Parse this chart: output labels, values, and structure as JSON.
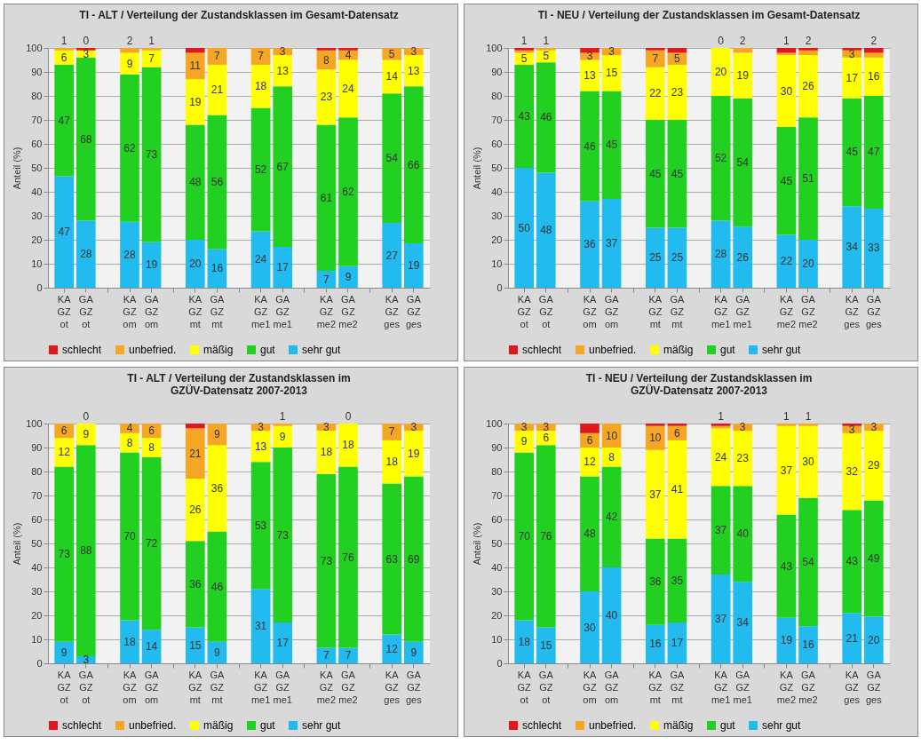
{
  "chart_data": [
    {
      "type": "bar",
      "stacked": true,
      "title": "TI - ALT / Verteilung der Zustandsklassen im Gesamt-Datensatz",
      "ylabel": "Anteil (%)",
      "categories": [
        "KA\nGZ\not",
        "GA\nGZ\not",
        null,
        "KA\nGZ\nom",
        "GA\nGZ\nom",
        null,
        "KA\nGZ\nmt",
        "GA\nGZ\nmt",
        null,
        "KA\nGZ\nme1",
        "GA\nGZ\nme1",
        null,
        "KA\nGZ\nme2",
        "GA\nGZ\nme2",
        null,
        "KA\nGZ\nges",
        "GA\nGZ\nges"
      ],
      "ylim": [
        0,
        100
      ],
      "yticks": [
        0,
        10,
        20,
        30,
        40,
        50,
        60,
        70,
        80,
        90,
        100
      ],
      "grid": "y",
      "legend": "bottom",
      "data_labels": true,
      "series": [
        {
          "name": "sehr gut",
          "color": "#21bbef",
          "values": [
            46.5,
            28,
            null,
            27.5,
            19,
            null,
            20,
            16,
            null,
            23.5,
            17,
            null,
            7,
            9,
            null,
            27,
            18.5
          ],
          "value_labels": [
            "47",
            "28",
            null,
            "28",
            "19",
            null,
            "20",
            "16",
            null,
            "24",
            "17",
            null,
            "7",
            "9",
            null,
            "27",
            "19"
          ]
        },
        {
          "name": "gut",
          "color": "#22d022",
          "values": [
            46.5,
            68,
            null,
            61.5,
            73,
            null,
            48,
            56,
            null,
            51.5,
            67,
            null,
            61,
            62,
            null,
            54,
            65.5
          ],
          "value_labels": [
            "47",
            "68",
            null,
            "62",
            "73",
            null,
            "48",
            "56",
            null,
            "52",
            "67",
            null,
            "61",
            "62",
            null,
            "54",
            "66"
          ]
        },
        {
          "name": "mäßig",
          "color": "#ffff00",
          "values": [
            6,
            3,
            null,
            9,
            7,
            null,
            19,
            21,
            null,
            18,
            13,
            null,
            23,
            24,
            null,
            14,
            13
          ]
        },
        {
          "name": "unbefried.",
          "color": "#f5a623",
          "values": [
            1,
            0,
            null,
            2,
            1,
            null,
            11,
            7,
            null,
            7,
            3,
            null,
            8,
            4,
            null,
            5,
            3
          ]
        },
        {
          "name": "schlecht",
          "color": "#e3161b",
          "values": [
            0,
            1,
            null,
            0,
            0,
            null,
            2,
            0,
            null,
            0,
            0,
            null,
            1,
            1,
            null,
            0,
            0
          ],
          "value_labels": [
            null,
            null,
            null,
            null,
            null,
            null,
            null,
            null,
            null,
            null,
            null,
            null,
            null,
            null,
            null,
            null,
            null
          ]
        }
      ]
    },
    {
      "type": "bar",
      "stacked": true,
      "title": "TI - NEU / Verteilung der Zustandsklassen im Gesamt-Datensatz",
      "ylabel": "Anteil (%)",
      "categories": [
        "KA\nGZ\not",
        "GA\nGZ\not",
        null,
        "KA\nGZ\nom",
        "GA\nGZ\nom",
        null,
        "KA\nGZ\nmt",
        "GA\nGZ\nmt",
        null,
        "KA\nGZ\nme1",
        "GA\nGZ\nme1",
        null,
        "KA\nGZ\nme2",
        "GA\nGZ\nme2",
        null,
        "KA\nGZ\nges",
        "GA\nGZ\nges"
      ],
      "ylim": [
        0,
        100
      ],
      "yticks": [
        0,
        10,
        20,
        30,
        40,
        50,
        60,
        70,
        80,
        90,
        100
      ],
      "grid": "y",
      "legend": "bottom",
      "data_labels": true,
      "series": [
        {
          "name": "sehr gut",
          "color": "#21bbef",
          "values": [
            50,
            48,
            null,
            36,
            37,
            null,
            25,
            25,
            null,
            28,
            25.5,
            null,
            22,
            20,
            null,
            34,
            33
          ],
          "value_labels": [
            "50",
            "48",
            null,
            "36",
            "37",
            null,
            "25",
            "25",
            null,
            "28",
            "26",
            null,
            "22",
            "20",
            null,
            "34",
            "33"
          ]
        },
        {
          "name": "gut",
          "color": "#22d022",
          "values": [
            43,
            46,
            null,
            46,
            45,
            null,
            45,
            45,
            null,
            52,
            53.5,
            null,
            45,
            51,
            null,
            45,
            47
          ],
          "value_labels": [
            "43",
            "46",
            null,
            "46",
            "45",
            null,
            "45",
            "45",
            null,
            "52",
            "54",
            null,
            "45",
            "51",
            null,
            "45",
            "47"
          ]
        },
        {
          "name": "mäßig",
          "color": "#ffff00",
          "values": [
            5,
            5,
            null,
            13,
            15,
            null,
            22,
            23,
            null,
            20,
            19,
            null,
            30,
            26,
            null,
            17,
            16
          ]
        },
        {
          "name": "unbefried.",
          "color": "#f5a623",
          "values": [
            1,
            1,
            null,
            3,
            3,
            null,
            7,
            5,
            null,
            0,
            2,
            null,
            1,
            2,
            null,
            3,
            2
          ]
        },
        {
          "name": "schlecht",
          "color": "#e3161b",
          "values": [
            1,
            0,
            null,
            2,
            0,
            null,
            1,
            2,
            null,
            0,
            0,
            null,
            2,
            1,
            null,
            1,
            2
          ],
          "value_labels": [
            null,
            null,
            null,
            null,
            null,
            null,
            null,
            null,
            null,
            null,
            null,
            null,
            null,
            null,
            null,
            null,
            null
          ]
        }
      ]
    },
    {
      "type": "bar",
      "stacked": true,
      "title": "TI - ALT / Verteilung der Zustandsklassen im\nGZÜV-Datensatz 2007-2013",
      "ylabel": "Anteil (%)",
      "categories": [
        "KA\nGZ\not",
        "GA\nGZ\not",
        null,
        "KA\nGZ\nom",
        "GA\nGZ\nom",
        null,
        "KA\nGZ\nmt",
        "GA\nGZ\nmt",
        null,
        "KA\nGZ\nme1",
        "GA\nGZ\nme1",
        null,
        "KA\nGZ\nme2",
        "GA\nGZ\nme2",
        null,
        "KA\nGZ\nges",
        "GA\nGZ\nges"
      ],
      "ylim": [
        0,
        100
      ],
      "yticks": [
        0,
        10,
        20,
        30,
        40,
        50,
        60,
        70,
        80,
        90,
        100
      ],
      "grid": "y",
      "legend": "bottom",
      "data_labels": true,
      "series": [
        {
          "name": "sehr gut",
          "color": "#21bbef",
          "values": [
            9,
            3,
            null,
            18,
            14,
            null,
            15,
            9,
            null,
            31,
            17,
            null,
            6.5,
            6.5,
            null,
            12,
            9
          ],
          "value_labels": [
            "9",
            "3",
            null,
            "18",
            "14",
            null,
            "15",
            "9",
            null,
            "31",
            "17",
            null,
            "7",
            "7",
            null,
            "12",
            "9"
          ]
        },
        {
          "name": "gut",
          "color": "#22d022",
          "values": [
            73,
            88,
            null,
            70,
            72,
            null,
            36,
            46,
            null,
            53,
            73,
            null,
            72.5,
            75.5,
            null,
            63,
            69
          ],
          "value_labels": [
            "73",
            "88",
            null,
            "70",
            "72",
            null,
            "36",
            "46",
            null,
            "53",
            "73",
            null,
            "73",
            "76",
            null,
            "63",
            "69"
          ]
        },
        {
          "name": "mäßig",
          "color": "#ffff00",
          "values": [
            12,
            9,
            null,
            8,
            8,
            null,
            26,
            36,
            null,
            13,
            9,
            null,
            18,
            18,
            null,
            18,
            19
          ]
        },
        {
          "name": "unbefried.",
          "color": "#f5a623",
          "values": [
            6,
            0,
            null,
            4,
            6,
            null,
            21,
            9,
            null,
            3,
            1,
            null,
            3,
            0,
            null,
            7,
            3
          ]
        },
        {
          "name": "schlecht",
          "color": "#e3161b",
          "values": [
            0,
            0,
            null,
            0,
            0,
            null,
            2,
            0,
            null,
            0,
            0,
            null,
            0,
            0,
            null,
            0,
            0
          ],
          "value_labels": [
            null,
            null,
            null,
            null,
            null,
            null,
            null,
            null,
            null,
            null,
            null,
            null,
            null,
            null,
            null,
            null,
            null
          ]
        }
      ]
    },
    {
      "type": "bar",
      "stacked": true,
      "title": "TI - NEU / Verteilung der Zustandsklassen im\nGZÜV-Datensatz 2007-2013",
      "ylabel": "Anteil (%)",
      "categories": [
        "KA\nGZ\not",
        "GA\nGZ\not",
        null,
        "KA\nGZ\nom",
        "GA\nGZ\nom",
        null,
        "KA\nGZ\nmt",
        "GA\nGZ\nmt",
        null,
        "KA\nGZ\nme1",
        "GA\nGZ\nme1",
        null,
        "KA\nGZ\nme2",
        "GA\nGZ\nme2",
        null,
        "KA\nGZ\nges",
        "GA\nGZ\nges"
      ],
      "ylim": [
        0,
        100
      ],
      "yticks": [
        0,
        10,
        20,
        30,
        40,
        50,
        60,
        70,
        80,
        90,
        100
      ],
      "grid": "y",
      "legend": "bottom",
      "data_labels": true,
      "series": [
        {
          "name": "sehr gut",
          "color": "#21bbef",
          "values": [
            18,
            15,
            null,
            30,
            40,
            null,
            16,
            17,
            null,
            37,
            34,
            null,
            19,
            15.5,
            null,
            21,
            19.5
          ],
          "value_labels": [
            "18",
            "15",
            null,
            "30",
            "40",
            null,
            "16",
            "17",
            null,
            "37",
            "34",
            null,
            "19",
            "16",
            null,
            "21",
            "20"
          ]
        },
        {
          "name": "gut",
          "color": "#22d022",
          "values": [
            70,
            76,
            null,
            48,
            42,
            null,
            36,
            35,
            null,
            37,
            40,
            null,
            43,
            53.5,
            null,
            43,
            48.5
          ],
          "value_labels": [
            "70",
            "76",
            null,
            "48",
            "42",
            null,
            "36",
            "35",
            null,
            "37",
            "40",
            null,
            "43",
            "54",
            null,
            "43",
            "49"
          ]
        },
        {
          "name": "mäßig",
          "color": "#ffff00",
          "values": [
            9,
            6,
            null,
            12,
            8,
            null,
            37,
            41,
            null,
            24,
            23,
            null,
            37,
            30,
            null,
            32,
            29
          ]
        },
        {
          "name": "unbefried.",
          "color": "#f5a623",
          "values": [
            3,
            3,
            null,
            6,
            10,
            null,
            10,
            6,
            null,
            1,
            3,
            null,
            1,
            1,
            null,
            3,
            3
          ]
        },
        {
          "name": "schlecht",
          "color": "#e3161b",
          "values": [
            0,
            0,
            null,
            4,
            0,
            null,
            1,
            1,
            null,
            1,
            0,
            null,
            0,
            0,
            null,
            1,
            0
          ],
          "value_labels": [
            null,
            null,
            null,
            null,
            null,
            null,
            null,
            null,
            null,
            null,
            null,
            null,
            null,
            null,
            null,
            null,
            null
          ]
        }
      ]
    }
  ]
}
